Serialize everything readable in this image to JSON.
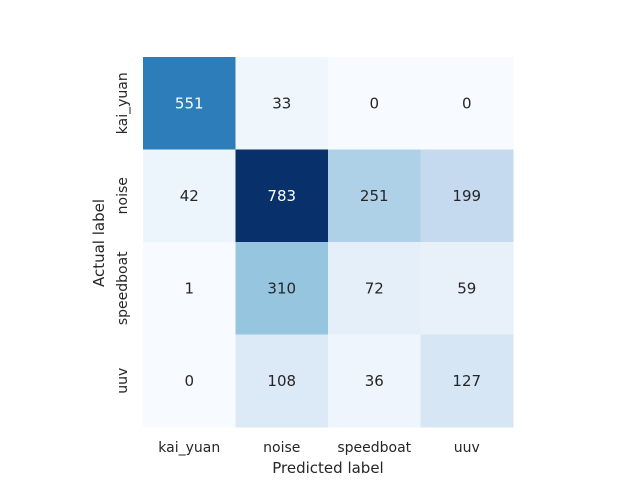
{
  "chart_data": {
    "type": "heatmap",
    "title": "",
    "xlabel": "Predicted label",
    "ylabel": "Actual label",
    "x_categories": [
      "kai_yuan",
      "noise",
      "speedboat",
      "uuv"
    ],
    "y_categories": [
      "kai_yuan",
      "noise",
      "speedboat",
      "uuv"
    ],
    "values": [
      [
        551,
        33,
        0,
        0
      ],
      [
        42,
        783,
        251,
        199
      ],
      [
        1,
        310,
        72,
        59
      ],
      [
        0,
        108,
        36,
        127
      ]
    ],
    "colormap": "Blues",
    "vmin": 0,
    "vmax": 783,
    "colorbar": false,
    "grid": false
  }
}
